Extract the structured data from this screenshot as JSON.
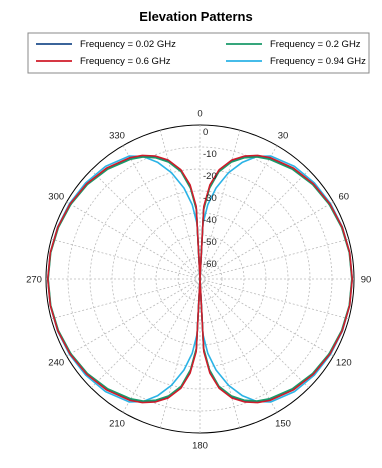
{
  "chart_data": {
    "type": "polar",
    "title": "Elevation Patterns",
    "angle_ticks": [
      "0",
      "30",
      "60",
      "90",
      "120",
      "150",
      "180",
      "210",
      "240",
      "270",
      "300",
      "330"
    ],
    "angle_tick_values": [
      0,
      30,
      60,
      90,
      120,
      150,
      180,
      210,
      240,
      270,
      300,
      330
    ],
    "radial_ticks": [
      "0",
      "-10",
      "-20",
      "-30",
      "-40",
      "-50",
      "-60"
    ],
    "radial_tick_values": [
      0,
      -10,
      -20,
      -30,
      -40,
      -50,
      -60
    ],
    "rlim": [
      -70,
      0
    ],
    "grid": true,
    "legend_position": "top",
    "series": [
      {
        "name": "Frequency = 0.02 GHz",
        "color": "#1f4e8c",
        "angles": [
          0,
          3,
          6,
          10,
          15,
          20,
          25,
          30,
          40,
          50,
          60,
          70,
          80,
          90,
          100,
          110,
          120,
          130,
          140,
          150,
          155,
          160,
          165,
          170,
          174,
          177,
          180
        ],
        "values": [
          -70,
          -38,
          -28,
          -20,
          -14.5,
          -11,
          -8.5,
          -6.8,
          -4.5,
          -3.0,
          -2.0,
          -1.3,
          -1.0,
          -0.9,
          -1.0,
          -1.3,
          -2.0,
          -3.0,
          -4.5,
          -6.8,
          -8.5,
          -11,
          -14.5,
          -20,
          -28,
          -38,
          -70
        ]
      },
      {
        "name": "Frequency = 0.2 GHz",
        "color": "#1a9a6a",
        "angles": [
          0,
          3,
          6,
          10,
          15,
          20,
          25,
          30,
          40,
          50,
          60,
          70,
          80,
          90,
          100,
          110,
          120,
          130,
          140,
          150,
          155,
          160,
          165,
          170,
          174,
          177,
          180
        ],
        "values": [
          -70,
          -38.5,
          -28.5,
          -20.5,
          -15,
          -11.4,
          -8.8,
          -7.1,
          -4.8,
          -3.2,
          -2.2,
          -1.5,
          -1.1,
          -1.0,
          -1.1,
          -1.5,
          -2.2,
          -3.2,
          -4.8,
          -7.1,
          -8.8,
          -11.4,
          -15,
          -20.5,
          -28.5,
          -38.5,
          -70
        ]
      },
      {
        "name": "Frequency = 0.6 GHz",
        "color": "#d01c2a",
        "angles": [
          0,
          3,
          6,
          10,
          15,
          20,
          25,
          30,
          40,
          50,
          60,
          70,
          80,
          90,
          100,
          110,
          120,
          130,
          140,
          150,
          155,
          160,
          165,
          170,
          174,
          177,
          180
        ],
        "values": [
          -70,
          -37,
          -27,
          -19.5,
          -14,
          -10.5,
          -8.0,
          -6.3,
          -4.1,
          -2.7,
          -1.8,
          -1.2,
          -0.9,
          -0.8,
          -0.9,
          -1.2,
          -1.8,
          -2.7,
          -4.1,
          -6.3,
          -8.0,
          -10.5,
          -14,
          -19.5,
          -27,
          -37,
          -70
        ]
      },
      {
        "name": "Frequency = 0.94 GHz",
        "color": "#2bb3e6",
        "angles": [
          0,
          3,
          6,
          10,
          15,
          20,
          25,
          30,
          40,
          50,
          60,
          70,
          80,
          90,
          100,
          110,
          120,
          130,
          140,
          150,
          155,
          160,
          165,
          170,
          174,
          177,
          180
        ],
        "values": [
          -70,
          -45,
          -36,
          -28,
          -20,
          -13.5,
          -8.5,
          -5.5,
          -3.2,
          -2.1,
          -1.5,
          -1.1,
          -0.9,
          -0.8,
          -0.9,
          -1.1,
          -1.5,
          -2.1,
          -3.2,
          -5.5,
          -8.5,
          -13.5,
          -20,
          -28,
          -36,
          -45,
          -70
        ]
      }
    ]
  }
}
